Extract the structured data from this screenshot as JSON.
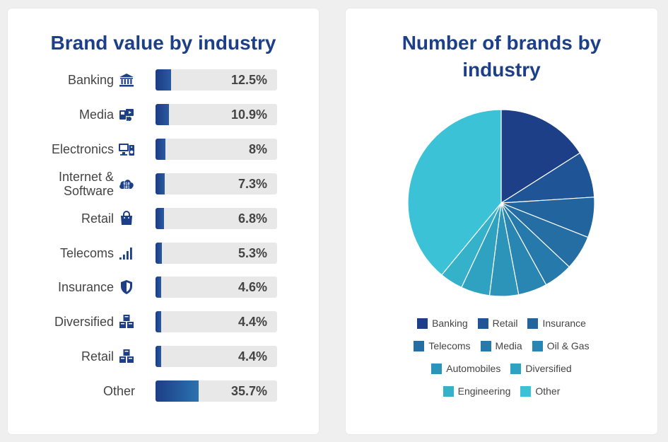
{
  "left_panel": {
    "title": "Brand value by industry"
  },
  "right_panel": {
    "title": "Number of brands by industry"
  },
  "chart_data": [
    {
      "type": "bar",
      "title": "Brand value by industry",
      "orientation": "horizontal",
      "unit": "%",
      "max": 100,
      "categories": [
        "Banking",
        "Media",
        "Electronics",
        "Internet & Software",
        "Retail",
        "Telecoms",
        "Insurance",
        "Diversified",
        "Retail",
        "Other"
      ],
      "values": [
        12.5,
        10.9,
        8,
        7.3,
        6.8,
        5.3,
        4.6,
        4.4,
        4.4,
        35.7
      ],
      "value_labels": [
        "12.5%",
        "10.9%",
        "8%",
        "7.3%",
        "6.8%",
        "5.3%",
        "4.6%",
        "4.4%",
        "4.4%",
        "35.7%"
      ],
      "icons": [
        "bank-icon",
        "media-icon",
        "electronics-icon",
        "cloud-binary-icon",
        "shopping-bag-icon",
        "signal-bars-icon",
        "shield-icon",
        "cubes-icon",
        "cubes-icon",
        ""
      ]
    },
    {
      "type": "pie",
      "title": "Number of brands by industry",
      "categories": [
        "Banking",
        "Retail",
        "Insurance",
        "Telecoms",
        "Media",
        "Oil & Gas",
        "Automobiles",
        "Diversified",
        "Engineering",
        "Other"
      ],
      "values": [
        16,
        8,
        7,
        6,
        5,
        5,
        5,
        5,
        4,
        39
      ],
      "colors": [
        "#1c3f87",
        "#1f5596",
        "#22649d",
        "#246ea4",
        "#2679ab",
        "#2986b2",
        "#2c94b9",
        "#30a2c1",
        "#35b1ca",
        "#3cc2d6"
      ],
      "legend_position": "bottom"
    }
  ]
}
